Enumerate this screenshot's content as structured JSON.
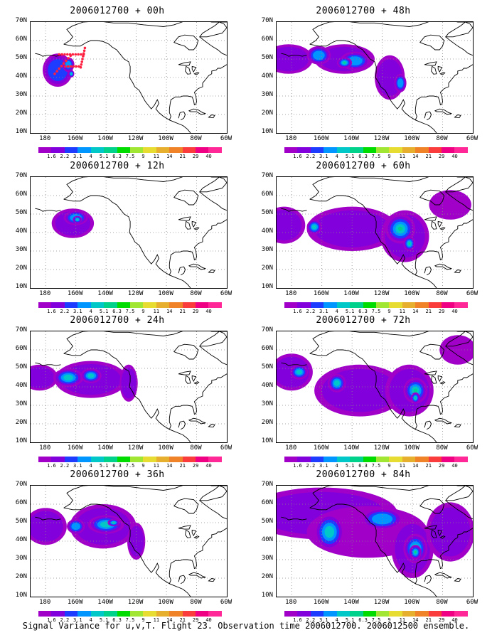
{
  "panels": [
    {
      "title": "2006012700 + 00h"
    },
    {
      "title": "2006012700 + 48h"
    },
    {
      "title": "2006012700 + 12h"
    },
    {
      "title": "2006012700 + 60h"
    },
    {
      "title": "2006012700 + 24h"
    },
    {
      "title": "2006012700 + 72h"
    },
    {
      "title": "2006012700 + 36h"
    },
    {
      "title": "2006012700 + 84h"
    }
  ],
  "y_ticks": [
    "70N",
    "60N",
    "50N",
    "40N",
    "30N",
    "20N",
    "10N"
  ],
  "x_ticks": [
    "180",
    "160W",
    "140W",
    "120W",
    "100W",
    "80W",
    "60W"
  ],
  "colorbar": {
    "labels": [
      "1.6",
      "2.2",
      "3.1",
      "4",
      "5.1",
      "6.3",
      "7.5",
      "9",
      "11",
      "14",
      "21",
      "29",
      "40"
    ],
    "colors": [
      "#a000c8",
      "#8200dc",
      "#1e3cff",
      "#0096ff",
      "#00c8c8",
      "#00d28c",
      "#00dc00",
      "#a0e632",
      "#e6dc32",
      "#e6af2d",
      "#f08228",
      "#fa3c3c",
      "#f00082",
      "#ff2896"
    ]
  },
  "caption": "Signal Variance for u,v,T. Flight 23. Observation time 2006012700. 2006012500 ensemble.",
  "dropsonde_color": "#ff2040"
}
